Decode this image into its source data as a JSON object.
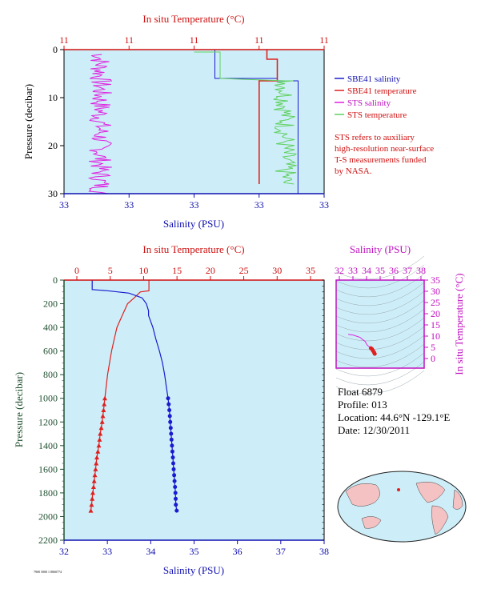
{
  "colors": {
    "plot_bg": "#cdeef8",
    "sbe_salinity": "#1a1ad0",
    "sbe_temperature": "#e02020",
    "sts_salinity": "#e020e0",
    "sts_temperature": "#60d060",
    "axis_red": "#d01010",
    "axis_blue": "#1010b0",
    "axis_green": "#205030",
    "axis_magenta": "#c010c0"
  },
  "legend": {
    "sbe_salinity": "SBE41 salinity",
    "sbe_temperature": "SBE41 temperature",
    "sts_salinity": "STS salinity",
    "sts_temperature": "STS temperature"
  },
  "note": [
    "STS refers to auxiliary",
    "high-resolution near-surface",
    "T-S measurements funded",
    "by NASA."
  ],
  "float_info": {
    "float": "Float  6879",
    "profile": "Profile:  013",
    "location": "Location:  44.6°N  -129.1°E",
    "date": "Date:  12/30/2011"
  },
  "footer_id": "7900 5000 1 8060774",
  "chart_data": [
    {
      "id": "near-surface",
      "type": "line",
      "top_title": "In situ Temperature (°C)",
      "top_ticks": [
        "11",
        "11",
        "11",
        "11",
        "11"
      ],
      "bottom_label": "Salinity (PSU)",
      "bottom_ticks": [
        "33",
        "33",
        "33",
        "33",
        "33"
      ],
      "ylabel": "Pressure (decibar)",
      "y_ticks": [
        "0",
        "10",
        "20",
        "30"
      ],
      "ylim": [
        0,
        30
      ],
      "series": [
        {
          "name": "SBE41 salinity",
          "points": [
            [
              0.58,
              0.1
            ],
            [
              0.58,
              6
            ],
            [
              0.82,
              6
            ],
            [
              0.82,
              6.5
            ],
            [
              0.9,
              6.5
            ],
            [
              0.9,
              30
            ]
          ]
        },
        {
          "name": "SBE41 temperature",
          "points": [
            [
              0.78,
              0.1
            ],
            [
              0.78,
              2
            ],
            [
              0.82,
              2
            ],
            [
              0.82,
              6.5
            ],
            [
              0.75,
              6.5
            ],
            [
              0.75,
              28
            ]
          ]
        },
        {
          "name": "STS salinity",
          "points": [
            [
              0.14,
              1
            ],
            [
              0.15,
              30
            ]
          ]
        },
        {
          "name": "STS temperature",
          "points": [
            [
              0.5,
              0.5
            ],
            [
              0.6,
              0.5
            ],
            [
              0.6,
              6
            ],
            [
              0.85,
              6.5
            ],
            [
              0.85,
              28
            ]
          ]
        }
      ]
    },
    {
      "id": "full-profile",
      "type": "line",
      "top_title": "In situ Temperature (°C)",
      "top_ticks": [
        "0",
        "5",
        "10",
        "15",
        "20",
        "25",
        "30",
        "35"
      ],
      "xlim_top": [
        0,
        35
      ],
      "bottom_label": "Salinity (PSU)",
      "bottom_ticks": [
        "32",
        "33",
        "34",
        "35",
        "36",
        "37",
        "38"
      ],
      "xlim_bottom": [
        32,
        38
      ],
      "ylabel": "Pressure (decibar)",
      "y_ticks": [
        "0",
        "200",
        "400",
        "600",
        "800",
        "1000",
        "1200",
        "1400",
        "1600",
        "1800",
        "2000",
        "2200"
      ],
      "ylim": [
        0,
        2200
      ],
      "series": [
        {
          "name": "temperature",
          "axis": "top",
          "points": [
            [
              10.8,
              0
            ],
            [
              10.8,
              90
            ],
            [
              9.5,
              100
            ],
            [
              8.6,
              150
            ],
            [
              7.6,
              200
            ],
            [
              6.8,
              300
            ],
            [
              6.0,
              400
            ],
            [
              5.6,
              500
            ],
            [
              5.2,
              600
            ],
            [
              4.9,
              700
            ],
            [
              4.6,
              800
            ],
            [
              4.4,
              900
            ],
            [
              4.2,
              1000
            ],
            [
              4.0,
              1100
            ],
            [
              3.8,
              1200
            ],
            [
              3.5,
              1300
            ],
            [
              3.3,
              1400
            ],
            [
              3.0,
              1500
            ],
            [
              2.8,
              1600
            ],
            [
              2.6,
              1700
            ],
            [
              2.4,
              1800
            ],
            [
              2.2,
              1900
            ],
            [
              2.1,
              1950
            ]
          ]
        },
        {
          "name": "salinity",
          "axis": "bottom",
          "points": [
            [
              32.65,
              0
            ],
            [
              32.65,
              80
            ],
            [
              33.0,
              90
            ],
            [
              33.5,
              110
            ],
            [
              33.8,
              150
            ],
            [
              33.9,
              200
            ],
            [
              33.95,
              260
            ],
            [
              33.95,
              300
            ],
            [
              34.0,
              350
            ],
            [
              34.05,
              400
            ],
            [
              34.12,
              500
            ],
            [
              34.2,
              600
            ],
            [
              34.27,
              700
            ],
            [
              34.32,
              800
            ],
            [
              34.36,
              900
            ],
            [
              34.4,
              1000
            ],
            [
              34.43,
              1100
            ],
            [
              34.45,
              1200
            ],
            [
              34.47,
              1300
            ],
            [
              34.49,
              1400
            ],
            [
              34.51,
              1500
            ],
            [
              34.53,
              1600
            ],
            [
              34.55,
              1700
            ],
            [
              34.57,
              1800
            ],
            [
              34.58,
              1900
            ],
            [
              34.6,
              1950
            ]
          ]
        }
      ],
      "markers_from": 1000
    },
    {
      "id": "ts-diagram",
      "type": "scatter",
      "top_title": "Salinity (PSU)",
      "top_ticks": [
        "32",
        "33",
        "34",
        "35",
        "36",
        "37",
        "38"
      ],
      "xlim": [
        32,
        38
      ],
      "ylabel": "In situ Temperature (°C)",
      "y_ticks": [
        "0",
        "5",
        "10",
        "15",
        "20",
        "25",
        "30",
        "35"
      ],
      "ylim": [
        0,
        35
      ],
      "points": [
        [
          32.65,
          10.8
        ],
        [
          33.0,
          10.5
        ],
        [
          33.5,
          9.5
        ],
        [
          33.9,
          7.6
        ],
        [
          34.05,
          6.0
        ],
        [
          34.2,
          5.2
        ],
        [
          34.32,
          4.6
        ],
        [
          34.4,
          4.2
        ],
        [
          34.47,
          3.5
        ],
        [
          34.55,
          2.8
        ],
        [
          34.6,
          2.1
        ]
      ]
    }
  ]
}
